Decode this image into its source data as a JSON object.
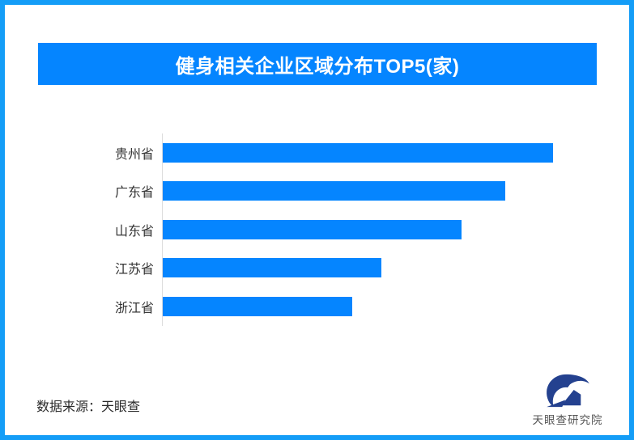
{
  "page": {
    "background": "#ffffff",
    "border_color": "#149df7",
    "accent_blue": "#0585ff"
  },
  "header": {
    "title": "健身相关企业区域分布TOP5(家)",
    "bg_color": "#0585ff",
    "text_color": "#ffffff"
  },
  "chart_data": {
    "type": "bar",
    "orientation": "horizontal",
    "title": "健身相关企业区域分布TOP5(家)",
    "categories": [
      "贵州省",
      "广东省",
      "山东省",
      "江苏省",
      "浙江省"
    ],
    "values": [
      100,
      87.8,
      76.6,
      56.0,
      48.6
    ],
    "values_unit": "relative bar length (longest bar = 100); no numeric axis or data labels are shown in the chart",
    "xlabel": "",
    "ylabel": "",
    "bar_color": "#0585ff",
    "axis_line_color": "#dcdcdc",
    "grid": false,
    "legend": false
  },
  "footer": {
    "source_label": "数据来源：天眼查",
    "brand": {
      "name": "天眼查研究院",
      "logo_icon": "tianyancha-eye-logo",
      "logo_color": "#24418f"
    }
  }
}
